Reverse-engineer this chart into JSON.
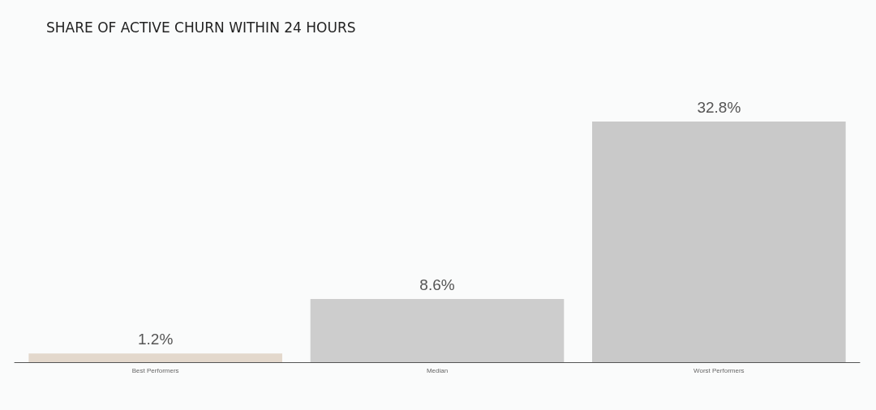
{
  "chart_data": {
    "type": "bar",
    "title": "SHARE OF ACTIVE CHURN WITHIN 24 HOURS",
    "categories": [
      "Best Performers",
      "Median",
      "Worst Performers"
    ],
    "values": [
      1.2,
      8.6,
      32.8
    ],
    "colors": [
      "#e3d8cc",
      "#cdcdcd",
      "#c9c9c9"
    ],
    "value_labels": [
      "1.2%",
      "8.6%",
      "32.8%"
    ]
  }
}
